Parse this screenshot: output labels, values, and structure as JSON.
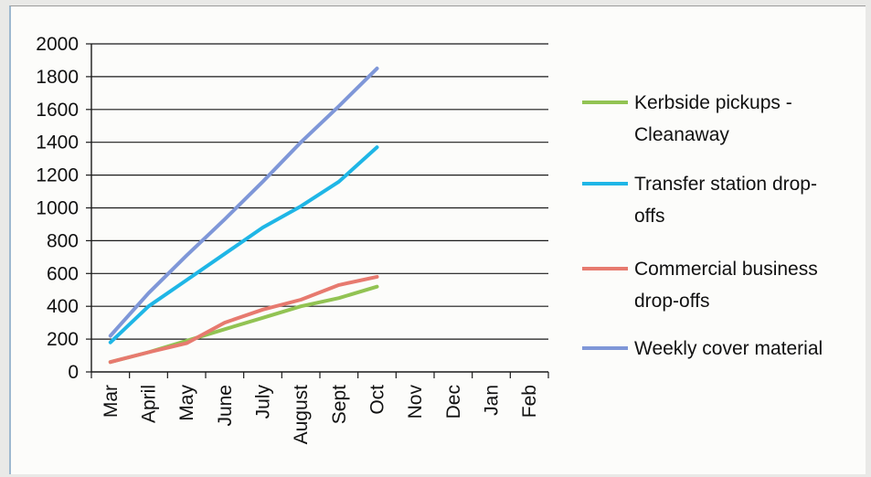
{
  "chart_data": {
    "type": "line",
    "categories": [
      "Mar",
      "April",
      "May",
      "June",
      "July",
      "August",
      "Sept",
      "Oct",
      "Nov",
      "Dec",
      "Jan",
      "Feb"
    ],
    "ylim": [
      0,
      2000
    ],
    "yticks": [
      "0",
      "200",
      "400",
      "600",
      "800",
      "1000",
      "1200",
      "1400",
      "1600",
      "1800",
      "2000"
    ],
    "grid": true,
    "legend_position": "right",
    "series": [
      {
        "name": "Kerbside pickups - Cleanaway",
        "legend_lines": [
          "Kerbside pickups -",
          "Cleanaway"
        ],
        "color": "#92c353",
        "values": [
          60,
          120,
          190,
          260,
          330,
          400,
          450,
          520,
          null,
          null,
          null,
          null
        ]
      },
      {
        "name": "Transfer station drop-offs",
        "legend_lines": [
          "Transfer station drop-",
          "offs"
        ],
        "color": "#1fb6e6",
        "values": [
          180,
          400,
          560,
          720,
          880,
          1010,
          1160,
          1370,
          null,
          null,
          null,
          null
        ]
      },
      {
        "name": "Commercial business drop-offs",
        "legend_lines": [
          "Commercial business",
          "drop-offs"
        ],
        "color": "#e77a6f",
        "values": [
          60,
          120,
          175,
          300,
          380,
          440,
          530,
          580,
          null,
          null,
          null,
          null
        ]
      },
      {
        "name": "Weekly cover material",
        "legend_lines": [
          "Weekly cover material"
        ],
        "color": "#7f97d8",
        "values": [
          220,
          480,
          710,
          930,
          1160,
          1400,
          1620,
          1850,
          null,
          null,
          null,
          null
        ]
      }
    ]
  }
}
